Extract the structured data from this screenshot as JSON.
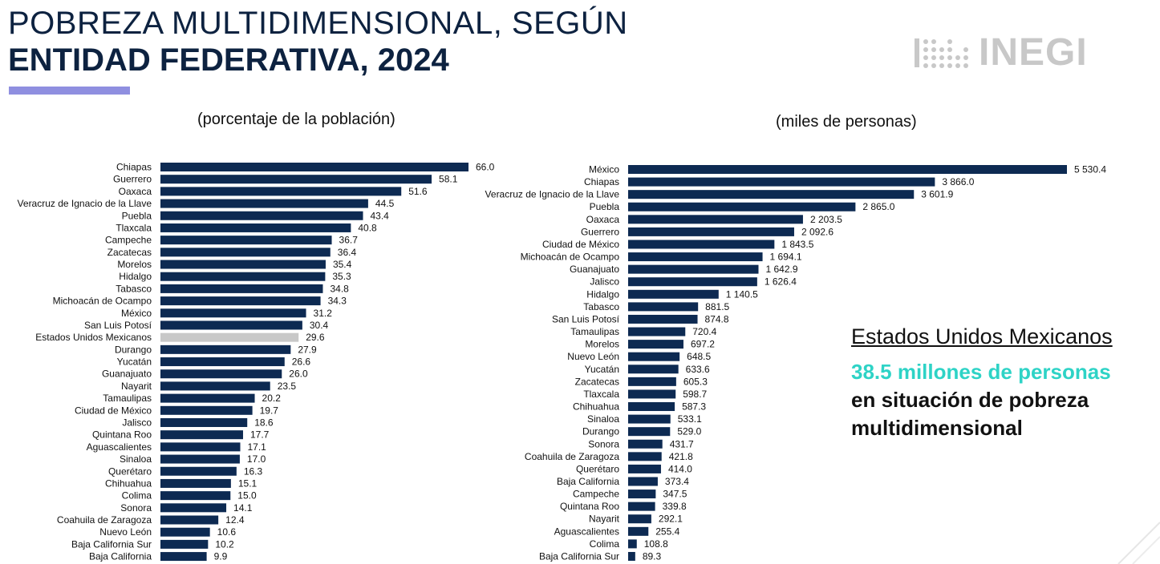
{
  "header": {
    "title_line1": "POBREZA MULTIDIMENSIONAL, SEGÚN",
    "title_line2": "ENTIDAD FEDERATIVA, 2024",
    "logo_text": "INEGI"
  },
  "colors": {
    "bar": "#0d2a52",
    "highlight_bar": "#c8c8c8",
    "accent_underline": "#8f8fe0",
    "highlight_text": "#2ed3c6"
  },
  "summary": {
    "heading": "Estados Unidos Mexicanos",
    "highlight": "38.5 millones de personas",
    "rest": " en situación de pobreza multidimensional"
  },
  "chart_data": [
    {
      "type": "bar",
      "orientation": "horizontal",
      "title": "(porcentaje de la población)",
      "highlight_category": "Estados Unidos Mexicanos",
      "categories": [
        "Chiapas",
        "Guerrero",
        "Oaxaca",
        "Veracruz de Ignacio de la Llave",
        "Puebla",
        "Tlaxcala",
        "Campeche",
        "Zacatecas",
        "Morelos",
        "Hidalgo",
        "Tabasco",
        "Michoacán de Ocampo",
        "México",
        "San Luis Potosí",
        "Estados Unidos Mexicanos",
        "Durango",
        "Yucatán",
        "Guanajuato",
        "Nayarit",
        "Tamaulipas",
        "Ciudad de México",
        "Jalisco",
        "Quintana Roo",
        "Aguascalientes",
        "Sinaloa",
        "Querétaro",
        "Chihuahua",
        "Colima",
        "Sonora",
        "Coahuila de Zaragoza",
        "Nuevo León",
        "Baja California Sur",
        "Baja California"
      ],
      "values": [
        66.0,
        58.1,
        51.6,
        44.5,
        43.4,
        40.8,
        36.7,
        36.4,
        35.4,
        35.3,
        34.8,
        34.3,
        31.2,
        30.4,
        29.6,
        27.9,
        26.6,
        26.0,
        23.5,
        20.2,
        19.7,
        18.6,
        17.7,
        17.1,
        17.0,
        16.3,
        15.1,
        15.0,
        14.1,
        12.4,
        10.6,
        10.2,
        9.9
      ],
      "labels": [
        "66.0",
        "58.1",
        "51.6",
        "44.5",
        "43.4",
        "40.8",
        "36.7",
        "36.4",
        "35.4",
        "35.3",
        "34.8",
        "34.3",
        "31.2",
        "30.4",
        "29.6",
        "27.9",
        "26.6",
        "26.0",
        "23.5",
        "20.2",
        "19.7",
        "18.6",
        "17.7",
        "17.1",
        "17.0",
        "16.3",
        "15.1",
        "15.0",
        "14.1",
        "12.4",
        "10.6",
        "10.2",
        "9.9"
      ]
    },
    {
      "type": "bar",
      "orientation": "horizontal",
      "title": "(miles de personas)",
      "categories": [
        "México",
        "Chiapas",
        "Veracruz de Ignacio de la Llave",
        "Puebla",
        "Oaxaca",
        "Guerrero",
        "Ciudad de México",
        "Michoacán de Ocampo",
        "Guanajuato",
        "Jalisco",
        "Hidalgo",
        "Tabasco",
        "San Luis Potosí",
        "Tamaulipas",
        "Morelos",
        "Nuevo León",
        "Yucatán",
        "Zacatecas",
        "Tlaxcala",
        "Chihuahua",
        "Sinaloa",
        "Durango",
        "Sonora",
        "Coahuila de Zaragoza",
        "Querétaro",
        "Baja California",
        "Campeche",
        "Quintana Roo",
        "Nayarit",
        "Aguascalientes",
        "Colima",
        "Baja California Sur"
      ],
      "values": [
        5530.4,
        3866.0,
        3601.9,
        2865.0,
        2203.5,
        2092.6,
        1843.5,
        1694.1,
        1642.9,
        1626.4,
        1140.5,
        881.5,
        874.8,
        720.4,
        697.2,
        648.5,
        633.6,
        605.3,
        598.7,
        587.3,
        533.1,
        529.0,
        431.7,
        421.8,
        414.0,
        373.4,
        347.5,
        339.8,
        292.1,
        255.4,
        108.8,
        89.3
      ],
      "labels": [
        "5 530.4",
        "3 866.0",
        "3 601.9",
        "2 865.0",
        "2 203.5",
        "2 092.6",
        "1 843.5",
        "1 694.1",
        "1 642.9",
        "1 626.4",
        "1 140.5",
        "881.5",
        "874.8",
        "720.4",
        "697.2",
        "648.5",
        "633.6",
        "605.3",
        "598.7",
        "587.3",
        "533.1",
        "529.0",
        "431.7",
        "421.8",
        "414.0",
        "373.4",
        "347.5",
        "339.8",
        "292.1",
        "255.4",
        "108.8",
        "89.3"
      ]
    }
  ]
}
